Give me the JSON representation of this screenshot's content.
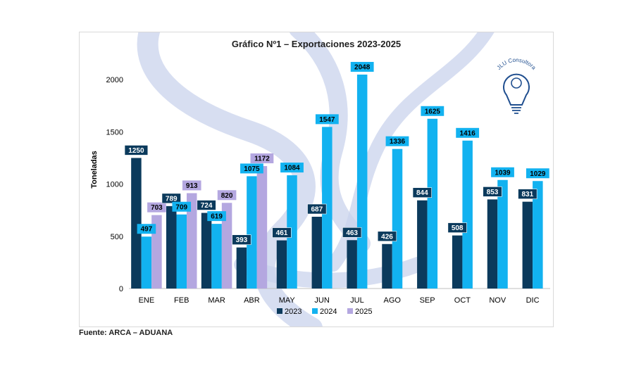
{
  "source_note": "Fuente: ARCA – ADUANA",
  "logo_text": "JLU Consultora",
  "colors": {
    "s2023": "#0b3a5c",
    "s2024": "#12b2f0",
    "s2025": "#b4a7e0",
    "watermark": "#c9d3ec"
  },
  "chart_data": {
    "type": "bar",
    "title": "Gráfico Nº1 – Exportaciones 2023-2025",
    "xlabel": "",
    "ylabel": "Toneladas",
    "ylim": [
      0,
      2250
    ],
    "yticks": [
      0,
      500,
      1000,
      1500,
      2000
    ],
    "grid": false,
    "legend": "bottom",
    "categories": [
      "ENE",
      "FEB",
      "MAR",
      "ABR",
      "MAY",
      "JUN",
      "JUL",
      "AGO",
      "SEP",
      "OCT",
      "NOV",
      "DIC"
    ],
    "series": [
      {
        "name": "2023",
        "values": [
          1250,
          789,
          724,
          393,
          461,
          687,
          463,
          426,
          844,
          508,
          853,
          831
        ]
      },
      {
        "name": "2024",
        "values": [
          497,
          709,
          619,
          1075,
          1084,
          1547,
          2048,
          1336,
          1625,
          1416,
          1039,
          1029
        ]
      },
      {
        "name": "2025",
        "values": [
          703,
          913,
          820,
          1172,
          null,
          null,
          null,
          null,
          null,
          null,
          null,
          null
        ]
      }
    ]
  }
}
